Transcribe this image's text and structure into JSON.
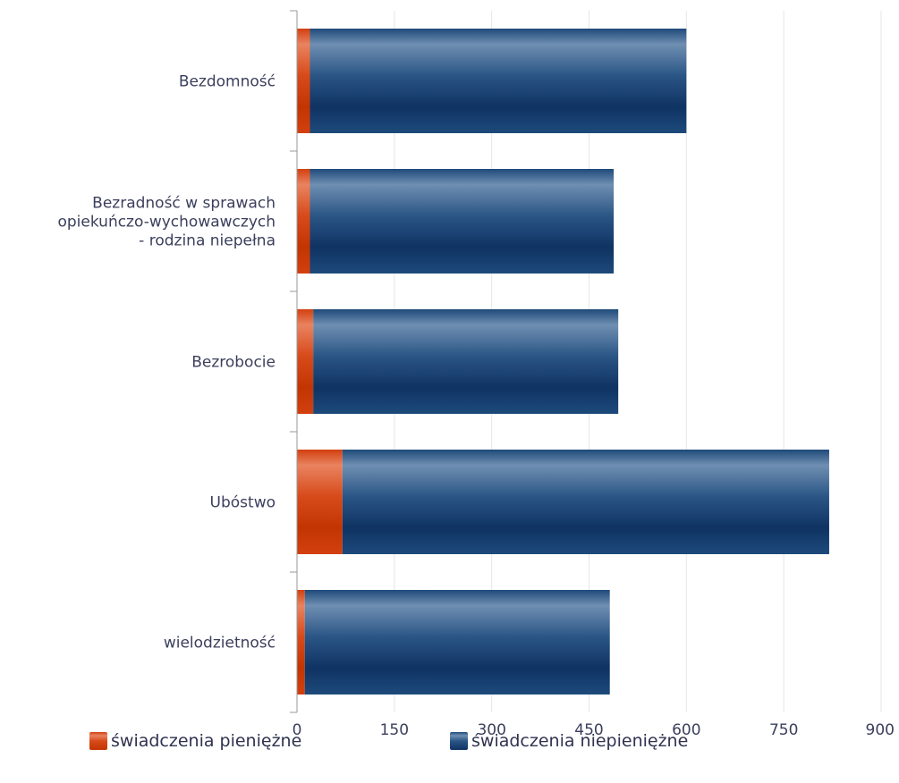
{
  "chart_data": {
    "type": "bar",
    "orientation": "horizontal",
    "stacked": true,
    "categories": [
      [
        "Bezdomność"
      ],
      [
        "Bezradność w sprawach",
        "opiekuńczo-wychowawczych",
        "- rodzina niepełna"
      ],
      [
        "Bezrobocie"
      ],
      [
        "Ubóstwo"
      ],
      [
        "wielodzietność"
      ]
    ],
    "series": [
      {
        "name": "świadczenia pieniężne",
        "color": "#d2400f",
        "values": [
          20,
          20,
          25,
          70,
          12
        ]
      },
      {
        "name": "świadczenia niepieniężne",
        "color": "#1c4878",
        "values": [
          580,
          468,
          470,
          750,
          470
        ]
      }
    ],
    "xlim": [
      0,
      900
    ],
    "xticks": [
      "0",
      "150",
      "300",
      "450",
      "600",
      "750",
      "900"
    ],
    "xtick_values": [
      0,
      150,
      300,
      450,
      600,
      750,
      900
    ],
    "grid": true,
    "legend_position": "bottom"
  },
  "legend": {
    "items": [
      {
        "label": "świadczenia pieniężne",
        "color": "#d2400f"
      },
      {
        "label": "świadczenia niepieniężne",
        "color": "#1c4878"
      }
    ]
  }
}
